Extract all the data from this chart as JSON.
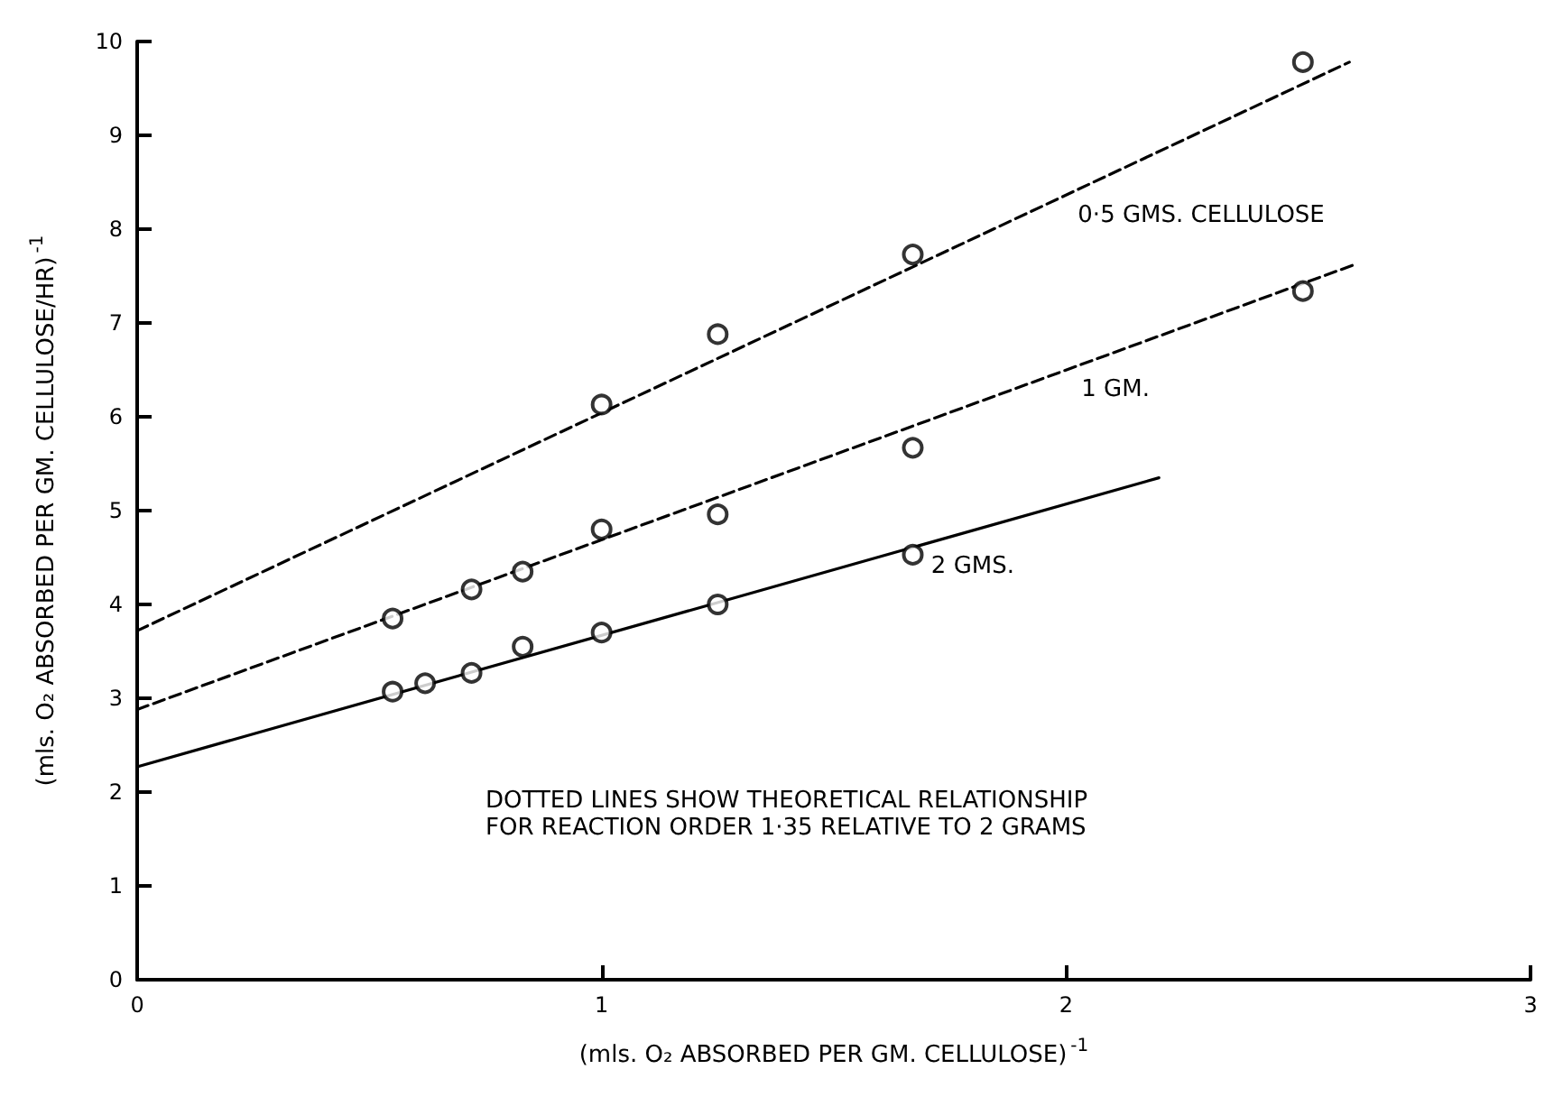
{
  "chart_data": {
    "type": "scatter",
    "xlabel": "(mls. O₂ ABSORBED PER GM. CELLULOSE)$^{-1}$",
    "ylabel": "(mls. O₂ ABSORBED PER GM. CELLULOSE/HR)$^{-1}$",
    "xlim": [
      0,
      3
    ],
    "xticks": [
      0,
      1,
      2,
      3
    ],
    "ylim": [
      0,
      10
    ],
    "yticks": [
      0,
      1,
      2,
      3,
      4,
      5,
      6,
      7,
      8,
      9,
      10
    ],
    "grid": false,
    "legend": false,
    "marker": "circle",
    "annotations": [
      "DOTTED LINES SHOW THEORETICAL RELATIONSHIP\nFOR REACTION ORDER 1·35 RELATIVE TO 2 GRAMS"
    ],
    "series": [
      {
        "type": "line",
        "name": "0·5 GMS. CELLULOSE",
        "color": "#000000",
        "line_style": "dashed",
        "marker": "none",
        "x": [
          0,
          2.61
        ],
        "values": [
          3.72,
          9.78
        ]
      },
      {
        "type": "line",
        "name": "1 GM.",
        "color": "#000000",
        "line_style": "dashed",
        "marker": "none",
        "x": [
          0,
          2.62
        ],
        "values": [
          2.88,
          7.62
        ]
      },
      {
        "type": "line",
        "name": "2 GMS.",
        "color": "#000000",
        "line_style": "solid",
        "marker": "none",
        "x": [
          0,
          2.2
        ],
        "values": [
          2.27,
          5.35
        ]
      },
      {
        "color": "#000000",
        "x": [
          1.0,
          1.25,
          1.67,
          2.51
        ],
        "values": [
          6.13,
          6.88,
          7.73,
          9.78
        ]
      },
      {
        "color": "#000000",
        "x": [
          0.55,
          0.72,
          0.83,
          1.0,
          1.25,
          1.67,
          2.51
        ],
        "values": [
          3.85,
          4.16,
          4.35,
          4.8,
          4.96,
          5.67,
          7.34
        ]
      },
      {
        "color": "#000000",
        "x": [
          0.55,
          0.62,
          0.72,
          0.83,
          1.0,
          1.25,
          1.67
        ],
        "values": [
          3.07,
          3.16,
          3.27,
          3.55,
          3.7,
          4.0,
          4.53
        ]
      }
    ]
  }
}
